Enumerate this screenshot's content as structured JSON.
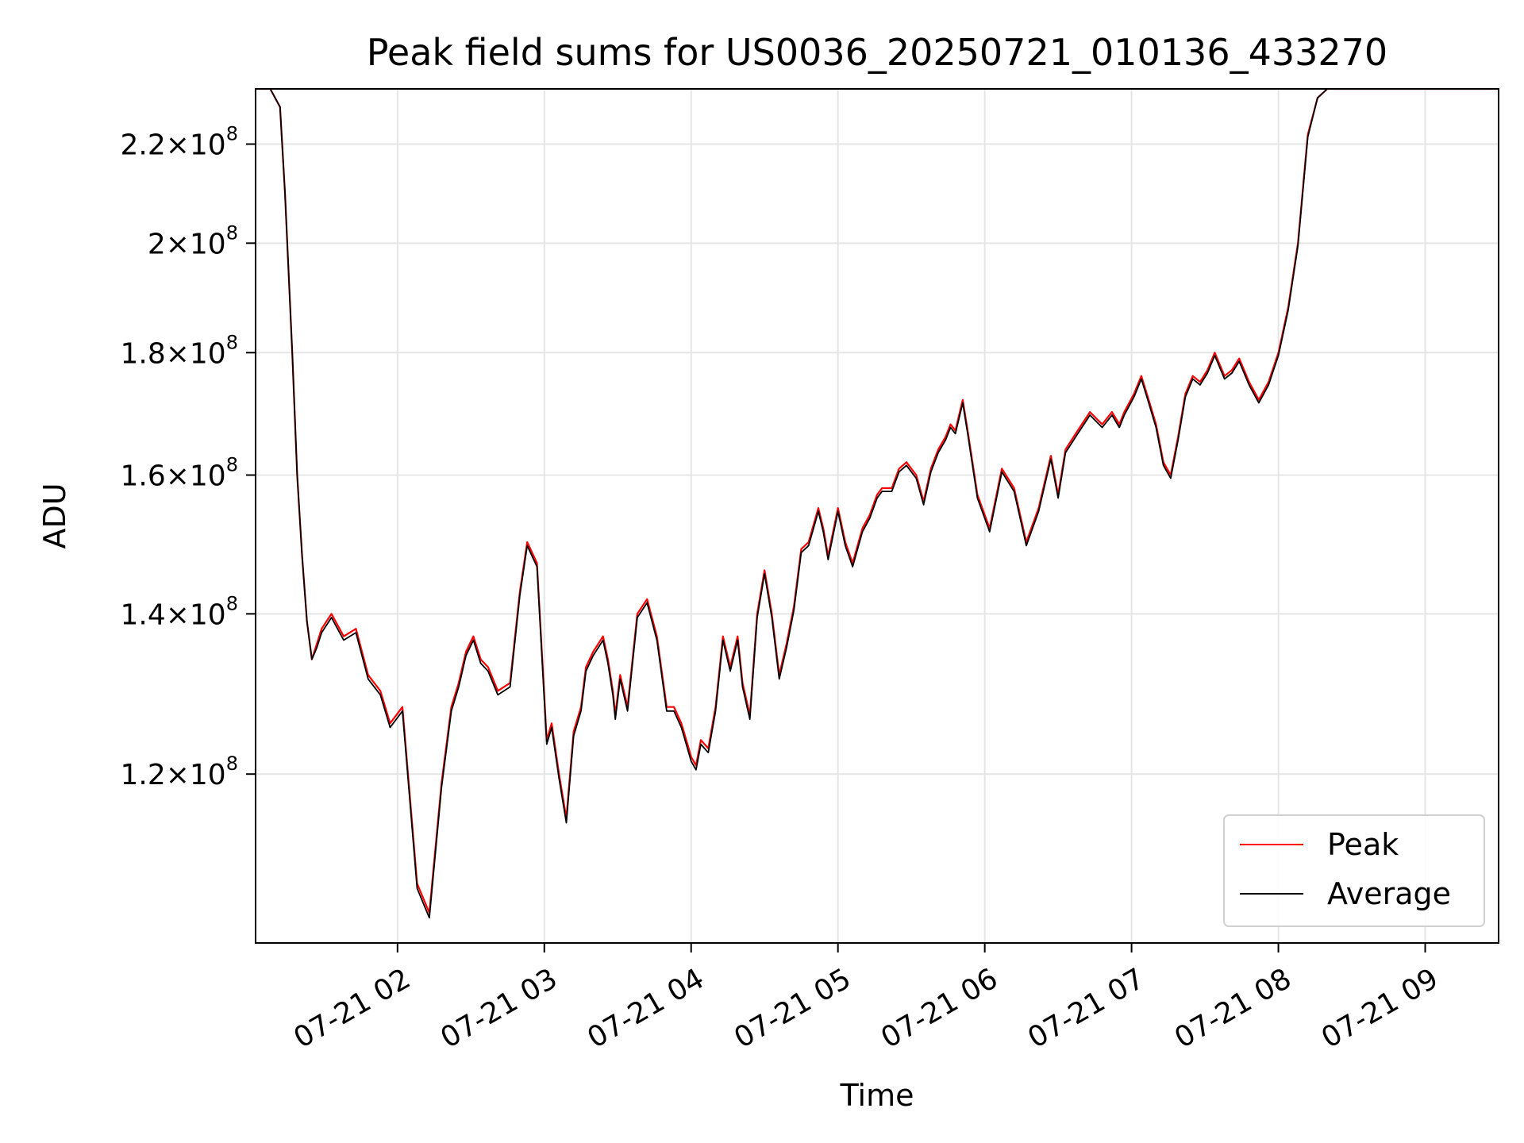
{
  "chart_data": {
    "type": "line",
    "title": "Peak field sums for US0036_20250721_010136_433270",
    "xlabel": "Time",
    "ylabel": "ADU",
    "y_scale": "log",
    "grid": true,
    "legend_position": "lower-right",
    "xlim": [
      "2025-07-21 01:02",
      "2025-07-21 09:30"
    ],
    "ylim": [
      102000000,
      232000000
    ],
    "x_ticks": [
      "07-21 02",
      "07-21 03",
      "07-21 04",
      "07-21 05",
      "07-21 06",
      "07-21 07",
      "07-21 08",
      "07-21 09"
    ],
    "y_ticks": [
      {
        "value": 120000000,
        "mantissa": "1.2",
        "exponent": "8"
      },
      {
        "value": 140000000,
        "mantissa": "1.4",
        "exponent": "8"
      },
      {
        "value": 160000000,
        "mantissa": "1.6",
        "exponent": "8"
      },
      {
        "value": 180000000,
        "mantissa": "1.8",
        "exponent": "8"
      },
      {
        "value": 200000000,
        "mantissa": "2",
        "exponent": "8"
      },
      {
        "value": 220000000,
        "mantissa": "2.2",
        "exponent": "8"
      }
    ],
    "x": [
      "01:02",
      "01:08",
      "01:12",
      "01:14",
      "01:17",
      "01:19",
      "01:21",
      "01:23",
      "01:25",
      "01:27",
      "01:29",
      "01:31",
      "01:33",
      "01:38",
      "01:43",
      "01:48",
      "01:53",
      "01:57",
      "02:02",
      "02:08",
      "02:13",
      "02:18",
      "02:22",
      "02:25",
      "02:28",
      "02:31",
      "02:34",
      "02:37",
      "02:41",
      "02:46",
      "02:50",
      "02:53",
      "02:57",
      "03:01",
      "03:03",
      "03:06",
      "03:09",
      "03:12",
      "03:15",
      "03:17",
      "03:20",
      "03:22",
      "03:24",
      "03:26",
      "03:28",
      "03:29",
      "03:31",
      "03:34",
      "03:38",
      "03:42",
      "03:46",
      "03:50",
      "03:53",
      "03:56",
      "03:58",
      "04:00",
      "04:02",
      "04:04",
      "04:07",
      "04:10",
      "04:13",
      "04:16",
      "04:19",
      "04:21",
      "04:24",
      "04:27",
      "04:30",
      "04:33",
      "04:36",
      "04:39",
      "04:42",
      "04:45",
      "04:48",
      "04:52",
      "04:54",
      "04:56",
      "05:00",
      "05:03",
      "05:06",
      "05:10",
      "05:13",
      "05:16",
      "05:18",
      "05:22",
      "05:25",
      "05:28",
      "05:32",
      "05:35",
      "05:38",
      "05:41",
      "05:44",
      "05:46",
      "05:48",
      "05:51",
      "05:53",
      "05:57",
      "06:02",
      "06:07",
      "06:12",
      "06:17",
      "06:22",
      "06:27",
      "06:30",
      "06:33",
      "06:38",
      "06:43",
      "06:48",
      "06:52",
      "06:55",
      "06:57",
      "07:01",
      "07:04",
      "07:07",
      "07:10",
      "07:13",
      "07:16",
      "07:19",
      "07:22",
      "07:25",
      "07:28",
      "07:31",
      "07:34",
      "07:38",
      "07:41",
      "07:44",
      "07:48",
      "07:52",
      "07:56",
      "08:00",
      "08:04",
      "08:08",
      "08:12",
      "08:16",
      "08:20",
      "08:24",
      "08:28",
      "08:32",
      "08:35",
      "08:38",
      "08:41",
      "08:45",
      "08:48",
      "08:50",
      "08:53",
      "08:56",
      "08:59",
      "09:02",
      "09:04",
      "09:07",
      "09:10",
      "09:14",
      "09:20",
      "09:30"
    ],
    "series": [
      {
        "name": "Peak",
        "color": "#ff0000",
        "values": [
          232,
          232,
          228,
          210,
          180,
          160,
          148,
          139,
          134,
          136,
          138,
          139,
          140,
          137,
          138,
          132,
          130,
          126,
          128,
          108,
          105,
          119,
          128,
          131,
          135,
          137,
          134,
          133,
          130,
          131,
          143,
          150,
          147,
          124,
          126,
          120,
          115,
          125,
          128,
          133,
          135,
          136,
          137,
          134,
          130,
          127,
          132,
          128,
          140,
          142,
          137,
          128,
          128,
          126,
          124,
          122,
          121,
          124,
          123,
          128,
          137,
          133,
          137,
          131,
          127,
          140,
          146,
          140,
          132,
          136,
          141,
          149,
          150,
          155,
          152,
          148,
          155,
          150,
          147,
          152,
          154,
          157,
          158,
          158,
          161,
          162,
          160,
          156,
          161,
          164,
          166,
          168,
          167,
          172,
          167,
          157,
          152,
          161,
          158,
          150,
          155,
          163,
          157,
          164,
          167,
          170,
          168,
          170,
          168,
          170,
          173,
          176,
          172,
          168,
          162,
          160,
          166,
          173,
          176,
          175,
          177,
          180,
          176,
          177,
          179,
          175,
          172,
          175,
          180,
          188,
          200,
          222,
          230,
          232,
          232,
          232,
          232,
          232,
          232,
          232,
          232,
          232,
          232,
          232,
          232,
          232,
          232,
          232,
          232,
          232,
          232,
          232,
          232
        ]
      },
      {
        "name": "Average",
        "color": "#000000",
        "values": [
          232,
          232,
          228,
          210,
          180,
          160,
          148,
          139,
          134,
          135.5,
          137.5,
          138.5,
          139.5,
          136.5,
          137.5,
          131.5,
          129.5,
          125.5,
          127.5,
          107.5,
          104.5,
          118.5,
          127.5,
          130.5,
          134.5,
          136.5,
          133.5,
          132.5,
          129.5,
          130.5,
          142.5,
          149.5,
          146.5,
          123.5,
          125.5,
          119.5,
          114.5,
          124.5,
          127.5,
          132.5,
          134.5,
          135.5,
          136.5,
          133.5,
          129.5,
          126.5,
          131.5,
          127.5,
          139.5,
          141.5,
          136.5,
          127.5,
          127.5,
          125.5,
          123.5,
          121.5,
          120.5,
          123.5,
          122.5,
          127.5,
          136.5,
          132.5,
          136.5,
          130.5,
          126.5,
          139.5,
          145.5,
          139.5,
          131.5,
          135.5,
          140.5,
          148.5,
          149.5,
          154.5,
          151.5,
          147.5,
          154.5,
          149.5,
          146.5,
          151.5,
          153.5,
          156.5,
          157.5,
          157.5,
          160.5,
          161.5,
          159.5,
          155.5,
          160.5,
          163.5,
          165.5,
          167.5,
          166.5,
          171.5,
          166.5,
          156.5,
          151.5,
          160.5,
          157.5,
          149.5,
          154.5,
          162.5,
          156.5,
          163.5,
          166.5,
          169.5,
          167.5,
          169.5,
          167.5,
          169.5,
          172.5,
          175.5,
          171.5,
          167.5,
          161.5,
          159.5,
          165.5,
          172.5,
          175.5,
          174.5,
          176.5,
          179.5,
          175.5,
          176.5,
          178.5,
          174.5,
          171.5,
          174.5,
          179.5,
          187.5,
          199.5,
          221.5,
          230,
          232,
          232,
          232,
          232,
          232,
          232,
          232,
          232,
          232,
          232,
          232,
          232,
          232,
          232,
          232,
          232,
          232,
          232,
          232,
          232
        ]
      }
    ]
  }
}
